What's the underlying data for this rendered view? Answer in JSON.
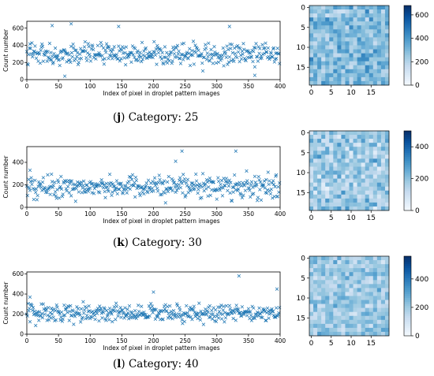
{
  "figure": {
    "xlabel": "Index of pixel in droplet pattern images",
    "ylabel": "Count number"
  },
  "chart_data": [
    {
      "type": "scatter",
      "panel": "j",
      "caption_label": "j",
      "caption_text": ") Category: 25",
      "x_ticks": [
        0,
        50,
        100,
        150,
        200,
        250,
        300,
        350,
        400
      ],
      "y_ticks": [
        0,
        200,
        400,
        600
      ],
      "xlim": [
        0,
        400
      ],
      "ylim": [
        0,
        680
      ],
      "marker": "x",
      "color": "#1f77b4",
      "mean": 300,
      "amp": 120,
      "seed": 25,
      "outliers": [
        [
          40,
          630
        ],
        [
          70,
          650
        ],
        [
          145,
          620
        ],
        [
          320,
          620
        ],
        [
          60,
          40
        ],
        [
          360,
          50
        ]
      ]
    },
    {
      "type": "heatmap",
      "panel": "j",
      "rows": 20,
      "cols": 20,
      "ticks": [
        0,
        5,
        10,
        15
      ],
      "colorbar_ticks": [
        0,
        200,
        400,
        600
      ],
      "vmax": 680,
      "vmin": 0,
      "mean": 300,
      "amp": 140,
      "seed": 125
    },
    {
      "type": "scatter",
      "panel": "k",
      "caption_label": "k",
      "caption_text": ") Category: 30",
      "x_ticks": [
        0,
        50,
        100,
        150,
        200,
        250,
        300,
        350,
        400
      ],
      "y_ticks": [
        0,
        200,
        400
      ],
      "xlim": [
        0,
        400
      ],
      "ylim": [
        0,
        540
      ],
      "marker": "x",
      "color": "#1f77b4",
      "mean": 180,
      "amp": 100,
      "seed": 30,
      "outliers": [
        [
          245,
          500
        ],
        [
          330,
          500
        ],
        [
          235,
          410
        ],
        [
          5,
          330
        ]
      ]
    },
    {
      "type": "heatmap",
      "panel": "k",
      "rows": 20,
      "cols": 20,
      "ticks": [
        0,
        5,
        10,
        15
      ],
      "colorbar_ticks": [
        0,
        200,
        400
      ],
      "vmax": 500,
      "vmin": 0,
      "mean": 180,
      "amp": 110,
      "seed": 130
    },
    {
      "type": "scatter",
      "panel": "l",
      "caption_label": "l",
      "caption_text": ") Category: 40",
      "x_ticks": [
        0,
        50,
        100,
        150,
        200,
        250,
        300,
        350,
        400
      ],
      "y_ticks": [
        0,
        200,
        400,
        600
      ],
      "xlim": [
        0,
        400
      ],
      "ylim": [
        0,
        620
      ],
      "marker": "x",
      "color": "#1f77b4",
      "mean": 210,
      "amp": 85,
      "seed": 40,
      "outliers": [
        [
          335,
          580
        ],
        [
          395,
          450
        ],
        [
          200,
          420
        ],
        [
          5,
          370
        ]
      ]
    },
    {
      "type": "heatmap",
      "panel": "l",
      "rows": 20,
      "cols": 20,
      "ticks": [
        0,
        5,
        10,
        15
      ],
      "colorbar_ticks": [
        0,
        200,
        400
      ],
      "vmax": 560,
      "vmin": 0,
      "mean": 210,
      "amp": 100,
      "seed": 140
    }
  ]
}
